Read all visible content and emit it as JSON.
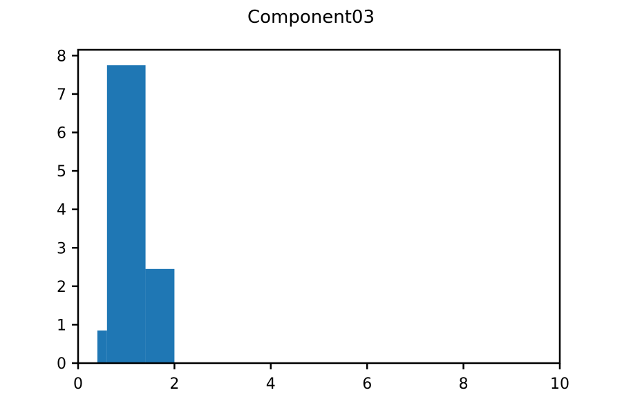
{
  "chart_data": {
    "type": "bar",
    "title": "Component03",
    "xlabel": "",
    "ylabel": "",
    "xlim": [
      0,
      10
    ],
    "ylim": [
      0,
      8.15
    ],
    "xticks": [
      0,
      2,
      4,
      6,
      8,
      10
    ],
    "xtick_labels": [
      "0",
      "2",
      "4",
      "6",
      "8",
      "10"
    ],
    "yticks": [
      0,
      1,
      2,
      3,
      4,
      5,
      6,
      7,
      8
    ],
    "ytick_labels": [
      "0",
      "1",
      "2",
      "3",
      "4",
      "5",
      "6",
      "7",
      "8"
    ],
    "bins": [
      {
        "x0": 0.4,
        "x1": 0.6,
        "value": 0.85
      },
      {
        "x0": 0.6,
        "x1": 1.4,
        "value": 7.75
      },
      {
        "x0": 1.4,
        "x1": 2.0,
        "value": 2.45
      }
    ],
    "bar_color": "#1f77b4",
    "grid": false
  }
}
